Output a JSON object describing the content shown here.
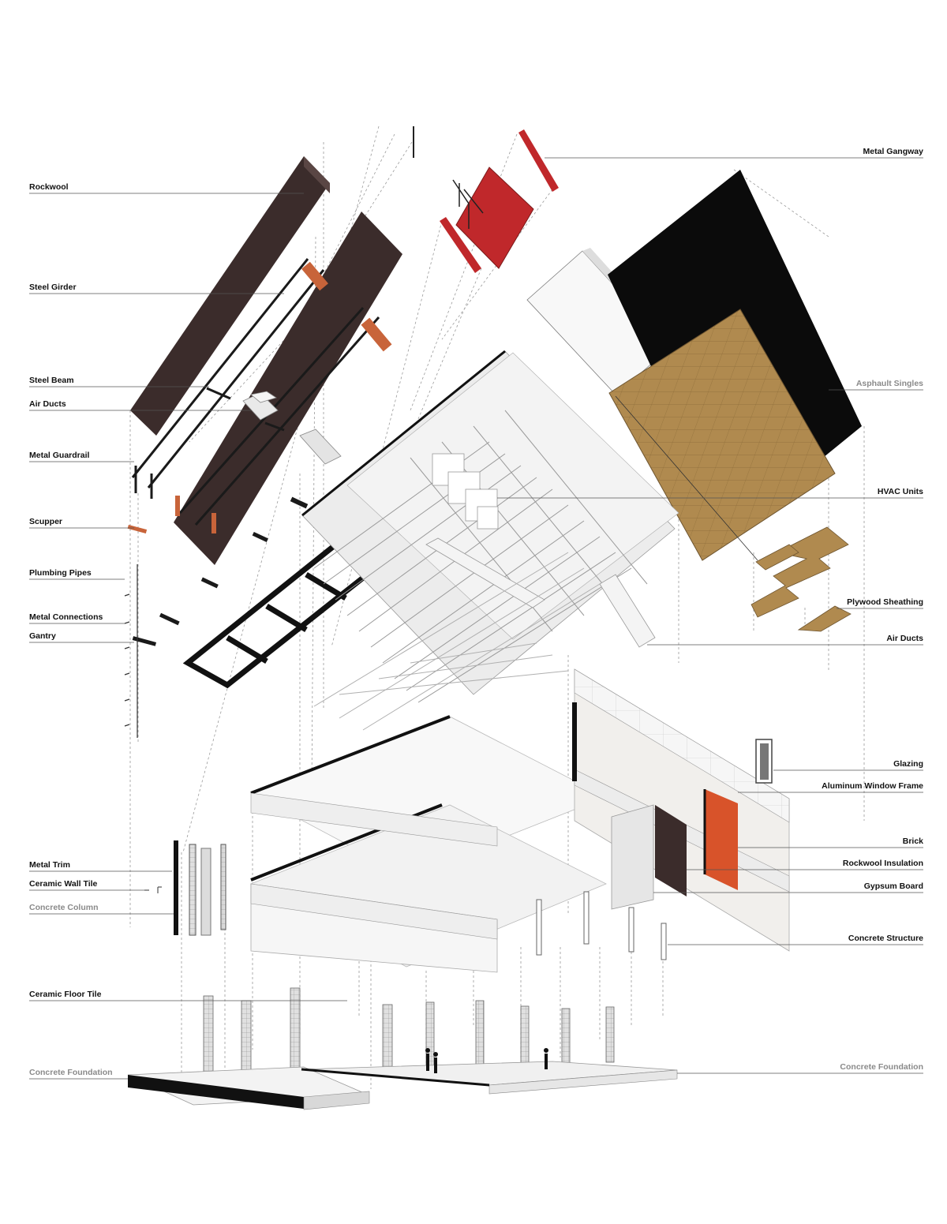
{
  "labels_left": [
    {
      "id": "rockwool",
      "text": "Rockwool",
      "muted": false
    },
    {
      "id": "steel-girder",
      "text": "Steel Girder",
      "muted": false
    },
    {
      "id": "steel-beam",
      "text": "Steel Beam",
      "muted": false
    },
    {
      "id": "air-ducts",
      "text": "Air Ducts",
      "muted": false
    },
    {
      "id": "metal-guardrail",
      "text": "Metal Guardrail",
      "muted": false
    },
    {
      "id": "scupper",
      "text": "Scupper",
      "muted": false
    },
    {
      "id": "plumbing-pipes",
      "text": "Plumbing Pipes",
      "muted": false
    },
    {
      "id": "metal-connections",
      "text": "Metal Connections",
      "muted": false
    },
    {
      "id": "gantry",
      "text": "Gantry",
      "muted": false
    },
    {
      "id": "metal-trim",
      "text": "Metal Trim",
      "muted": false
    },
    {
      "id": "ceramic-wall-tile",
      "text": "Ceramic Wall Tile",
      "muted": false
    },
    {
      "id": "concrete-column",
      "text": "Concrete Column",
      "muted": true
    },
    {
      "id": "ceramic-floor-tile",
      "text": "Ceramic Floor Tile",
      "muted": false
    },
    {
      "id": "concrete-foundation",
      "text": "Concrete Foundation",
      "muted": true
    }
  ],
  "labels_right": [
    {
      "id": "metal-gangway",
      "text": "Metal Gangway",
      "muted": false
    },
    {
      "id": "asphault-singles",
      "text": "Asphault Singles",
      "muted": true
    },
    {
      "id": "hvac-units",
      "text": "HVAC Units",
      "muted": false
    },
    {
      "id": "plywood-sheathing",
      "text": "Plywood Sheathing",
      "muted": false
    },
    {
      "id": "air-ducts",
      "text": "Air Ducts",
      "muted": false
    },
    {
      "id": "glazing",
      "text": "Glazing",
      "muted": false
    },
    {
      "id": "aluminum-window-frame",
      "text": "Aluminum Window Frame",
      "muted": false
    },
    {
      "id": "brick",
      "text": "Brick",
      "muted": false
    },
    {
      "id": "rockwool-insulation",
      "text": "Rockwool Insulation",
      "muted": false
    },
    {
      "id": "gypsum-board",
      "text": "Gypsum Board",
      "muted": false
    },
    {
      "id": "concrete-structure",
      "text": "Concrete Structure",
      "muted": false
    },
    {
      "id": "concrete-foundation",
      "text": "Concrete Foundation",
      "muted": true
    }
  ],
  "colors": {
    "label": "#111111",
    "label_muted": "#8a8a8a",
    "rockwool": "#3b2c2b",
    "gangway_red": "#c0282b",
    "brick_orange": "#d8532a",
    "plywood": "#b08a4f",
    "asphalt": "#0b0b0b",
    "steel_orange": "#c8643a",
    "frame_black": "#111111",
    "glass": "#f2f2f2",
    "leader": "#555555"
  }
}
